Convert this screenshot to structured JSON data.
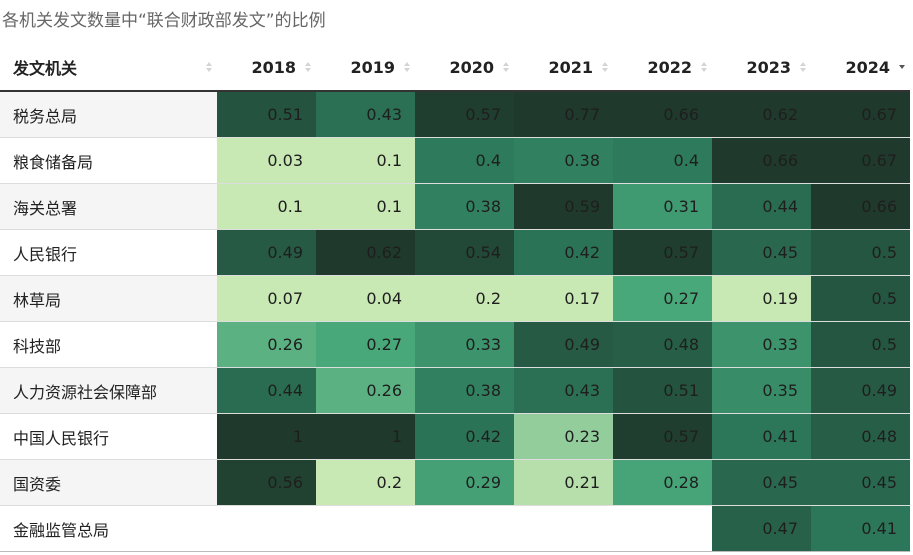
{
  "caption": "各机关发文数量中“联合财政部发文”的比例",
  "chart_data": {
    "type": "heatmap",
    "row_header": "发文机关",
    "columns": [
      "2018",
      "2019",
      "2020",
      "2021",
      "2022",
      "2023",
      "2024"
    ],
    "sorted_column": "2024",
    "sort_direction": "descending",
    "rows": [
      {
        "name": "税务总局",
        "values": [
          0.51,
          0.43,
          0.57,
          0.77,
          0.66,
          0.62,
          0.67
        ]
      },
      {
        "name": "粮食储备局",
        "values": [
          0.03,
          0.1,
          0.4,
          0.38,
          0.4,
          0.66,
          0.67
        ]
      },
      {
        "name": "海关总署",
        "values": [
          0.1,
          0.1,
          0.38,
          0.59,
          0.31,
          0.44,
          0.66
        ]
      },
      {
        "name": "人民银行",
        "values": [
          0.49,
          0.62,
          0.54,
          0.42,
          0.57,
          0.45,
          0.5
        ]
      },
      {
        "name": "林草局",
        "values": [
          0.07,
          0.04,
          0.2,
          0.17,
          0.27,
          0.19,
          0.5
        ]
      },
      {
        "name": "科技部",
        "values": [
          0.26,
          0.27,
          0.33,
          0.49,
          0.48,
          0.33,
          0.5
        ]
      },
      {
        "name": "人力资源社会保障部",
        "values": [
          0.44,
          0.26,
          0.38,
          0.43,
          0.51,
          0.35,
          0.49
        ]
      },
      {
        "name": "中国人民银行",
        "values": [
          1,
          1,
          0.42,
          0.23,
          0.57,
          0.41,
          0.48
        ]
      },
      {
        "name": "国资委",
        "values": [
          0.56,
          0.2,
          0.29,
          0.21,
          0.28,
          0.45,
          0.45
        ]
      },
      {
        "name": "金融监管总局",
        "values": [
          null,
          null,
          null,
          null,
          null,
          0.47,
          0.41
        ]
      }
    ]
  },
  "colors": {
    "scale_low": "#c8e8b4",
    "scale_mid_low": "#8fcf95",
    "scale_mid": "#49a87a",
    "scale_mid_high": "#2d7a5c",
    "scale_high": "#1f3a2c",
    "text_dark": "#1e1e1e",
    "text_light": "#1e1e1e"
  }
}
